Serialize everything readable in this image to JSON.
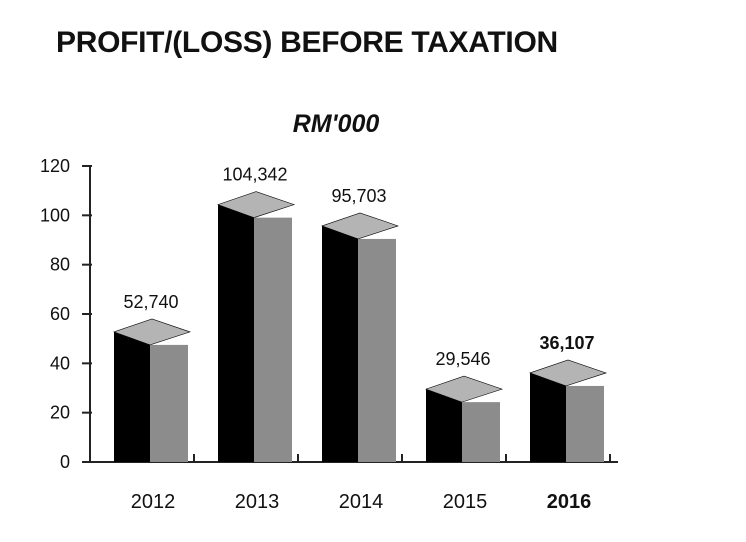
{
  "chart_data": {
    "type": "bar",
    "title": "PROFIT/(LOSS) BEFORE TAXATION",
    "subtitle": "RM'000",
    "categories": [
      "2012",
      "2013",
      "2014",
      "2015",
      "2016"
    ],
    "values": [
      52740,
      104342,
      95703,
      29546,
      36107
    ],
    "value_labels": [
      "52,740",
      "104,342",
      "95,703",
      "29,546",
      "36,107"
    ],
    "highlight_index": 4,
    "ylim": [
      0,
      120
    ],
    "y_ticks": [
      0,
      20,
      40,
      60,
      80,
      100,
      120
    ],
    "y_tick_labels": [
      "0",
      "20",
      "40",
      "60",
      "80",
      "100",
      "120"
    ],
    "y_scale_divisor": 1000,
    "xlabel": "",
    "ylabel": "",
    "grid": false,
    "colors": {
      "front": "#8c8c8c",
      "side": "#000000",
      "top": "#b4b4b4",
      "axis": "#222222",
      "text": "#111111"
    }
  }
}
